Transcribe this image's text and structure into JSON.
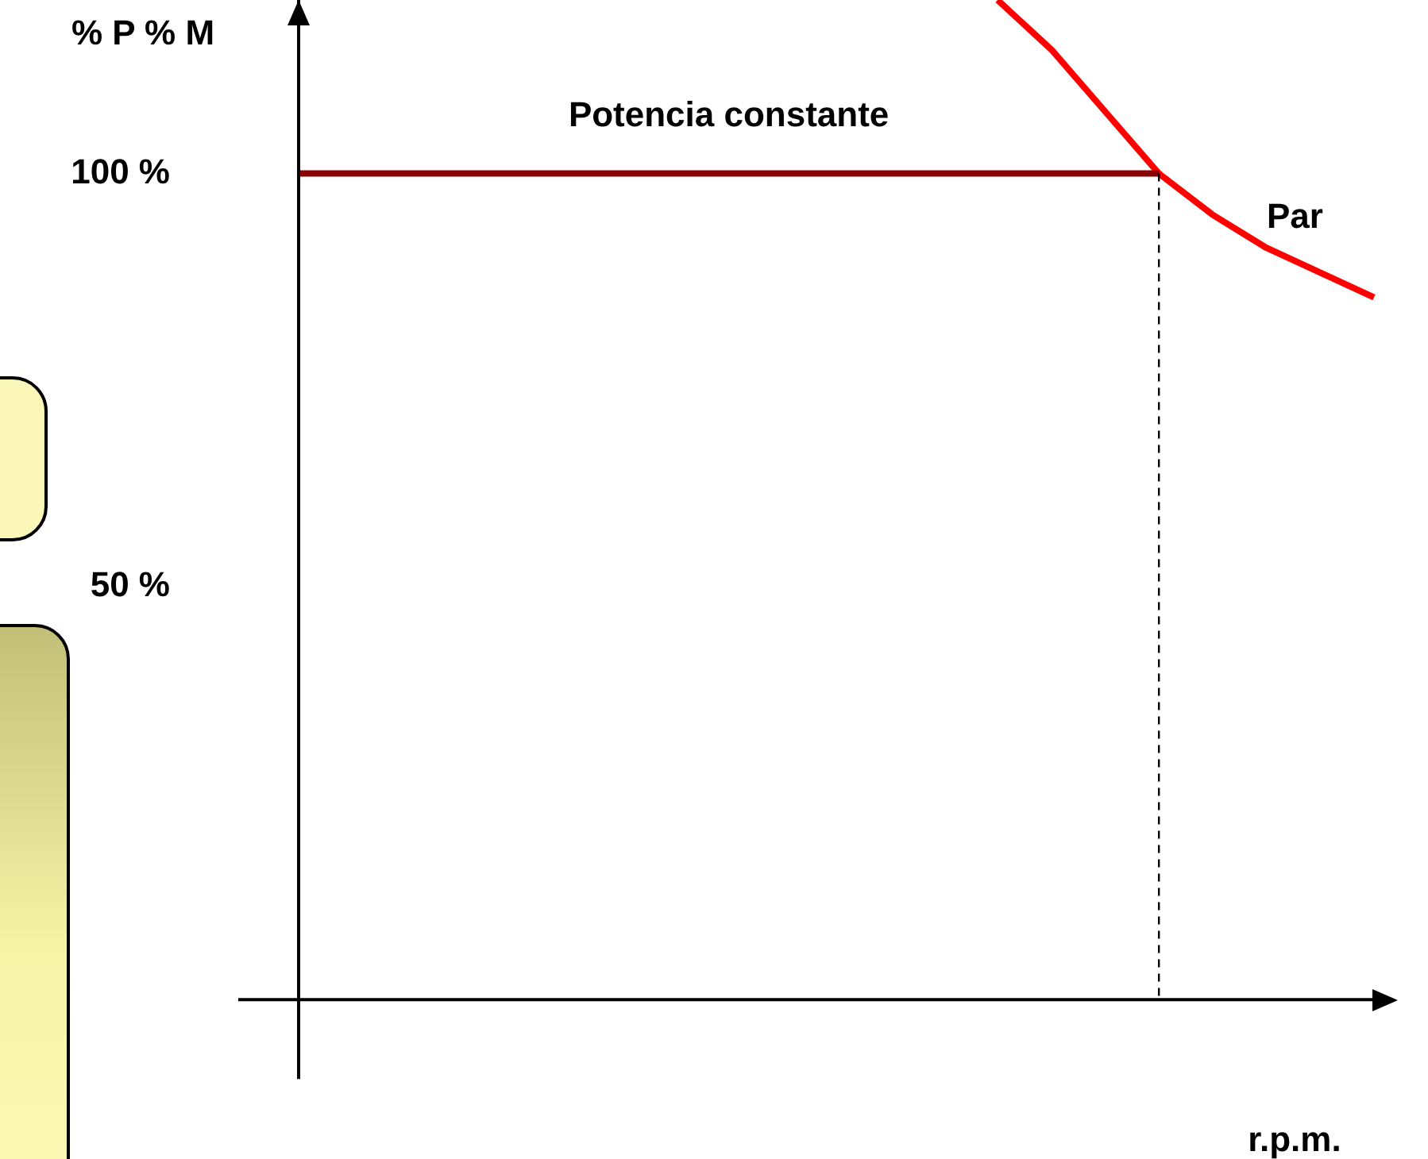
{
  "chart_data": {
    "type": "line",
    "ylabel": "% P % M",
    "xlabel": "r.p.m.",
    "categories": [
      null,
      null,
      null,
      null,
      null,
      null,
      null,
      null,
      null,
      null,
      null,
      null,
      null,
      null,
      null,
      null,
      null,
      null,
      null,
      null,
      null
    ],
    "ylim": [
      -9.6,
      121
    ],
    "yticks": [
      {
        "value": 50,
        "label": "50 %"
      },
      {
        "value": 100,
        "label": "100 %"
      }
    ],
    "grid": false,
    "legend": false,
    "marker": "none",
    "series": [
      {
        "name": "Potencia constante",
        "color": "#8b0000",
        "values": [
          100,
          100,
          100,
          100,
          100,
          100,
          100,
          100,
          100,
          100,
          100,
          100,
          100,
          100,
          100,
          100,
          100,
          null,
          null,
          null,
          null
        ]
      },
      {
        "name": "Par",
        "color": "#ff0000",
        "values": [
          null,
          null,
          null,
          null,
          null,
          null,
          null,
          null,
          null,
          null,
          null,
          null,
          null,
          121,
          115,
          107.5,
          100,
          95,
          91,
          88,
          85
        ]
      }
    ]
  }
}
